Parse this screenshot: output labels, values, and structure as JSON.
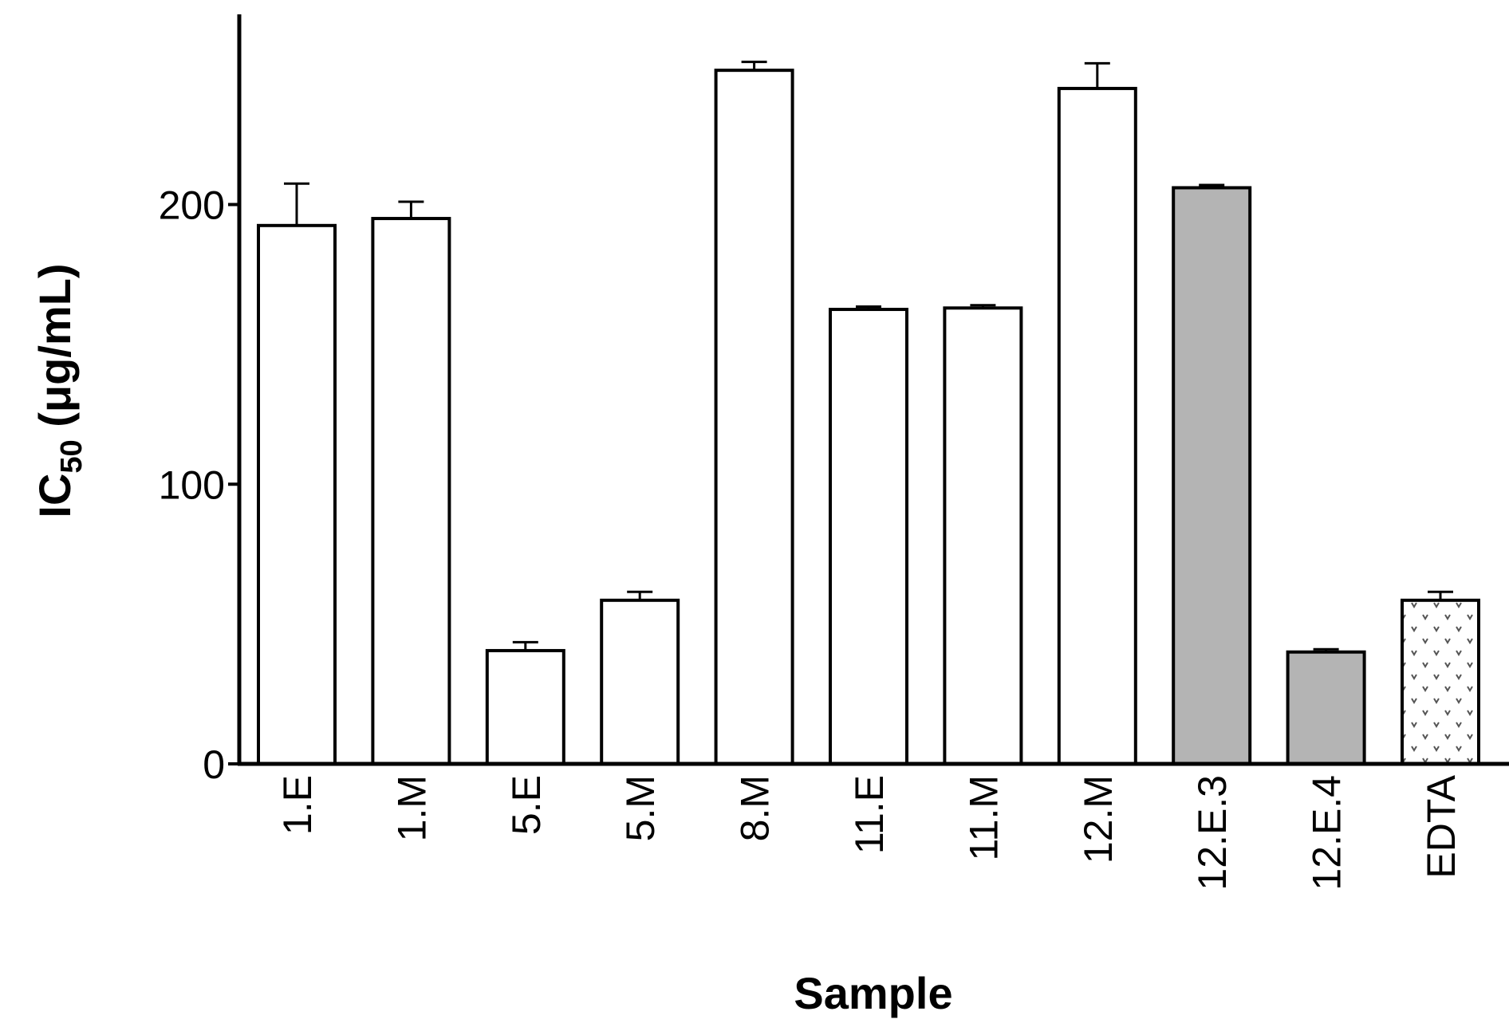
{
  "chart_data": {
    "type": "bar",
    "title": "",
    "xlabel": "Sample",
    "ylabel": {
      "main": "IC",
      "subscript": "50",
      "unit": " (μg/mL)"
    },
    "ylim": [
      0,
      268
    ],
    "yticks": [
      0,
      100,
      200
    ],
    "ytick_labels": [
      "0",
      "100",
      "200"
    ],
    "grid": false,
    "legend": "none",
    "categories": [
      "1.E",
      "1.M",
      "5.E",
      "5.M",
      "8.M",
      "11.E",
      "11.M",
      "12.M",
      "12.E.3",
      "12.E.4",
      "EDTA"
    ],
    "values": [
      192.5,
      195,
      40.5,
      58.5,
      248,
      162.5,
      163,
      241.5,
      206,
      40,
      58.5
    ],
    "errors": [
      15,
      6,
      3,
      3,
      3,
      1,
      1,
      9,
      1,
      1,
      3
    ],
    "fills": [
      "white",
      "white",
      "white",
      "white",
      "white",
      "white",
      "white",
      "white",
      "gray",
      "gray",
      "dotted"
    ],
    "colors": {
      "white": "#ffffff",
      "gray": "#b4b4b4",
      "outline": "#000000"
    }
  }
}
